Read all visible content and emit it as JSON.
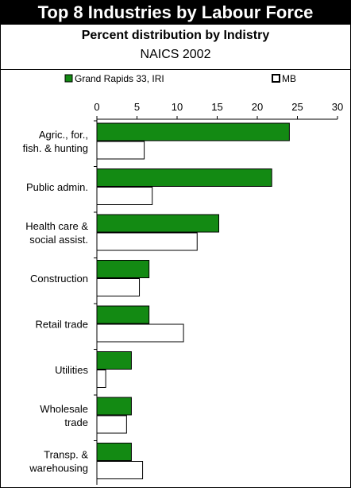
{
  "header": {
    "title": "Top 8 Industries by Labour Force",
    "subtitle": "Percent distribution by Indistry",
    "subtitle2": "NAICS 2002"
  },
  "colors": {
    "series_a": "#138a13",
    "series_b": "#ffffff",
    "stroke": "#000000"
  },
  "chart_data": {
    "type": "bar",
    "orientation": "horizontal",
    "title": "Top 8 Industries by Labour Force",
    "subtitle": "Percent distribution by Indistry",
    "xlim": [
      0,
      30
    ],
    "x_ticks": [
      0,
      5,
      10,
      15,
      20,
      25,
      30
    ],
    "legend_position": "top",
    "grid": false,
    "categories": [
      [
        "Agric., for.,",
        "fish. & hunting"
      ],
      [
        "Public admin."
      ],
      [
        "Health care &",
        "social assist."
      ],
      [
        "Construction"
      ],
      [
        "Retail trade"
      ],
      [
        "Utilities"
      ],
      [
        "Wholesale",
        "trade"
      ],
      [
        "Transp. &",
        "warehousing"
      ]
    ],
    "series": [
      {
        "name": "Grand Rapids 33, IRI",
        "values": [
          24.0,
          21.8,
          15.2,
          6.5,
          6.5,
          4.3,
          4.3,
          4.3
        ]
      },
      {
        "name": "MB",
        "values": [
          5.9,
          6.9,
          12.5,
          5.3,
          10.8,
          1.1,
          3.7,
          5.7
        ]
      }
    ]
  }
}
